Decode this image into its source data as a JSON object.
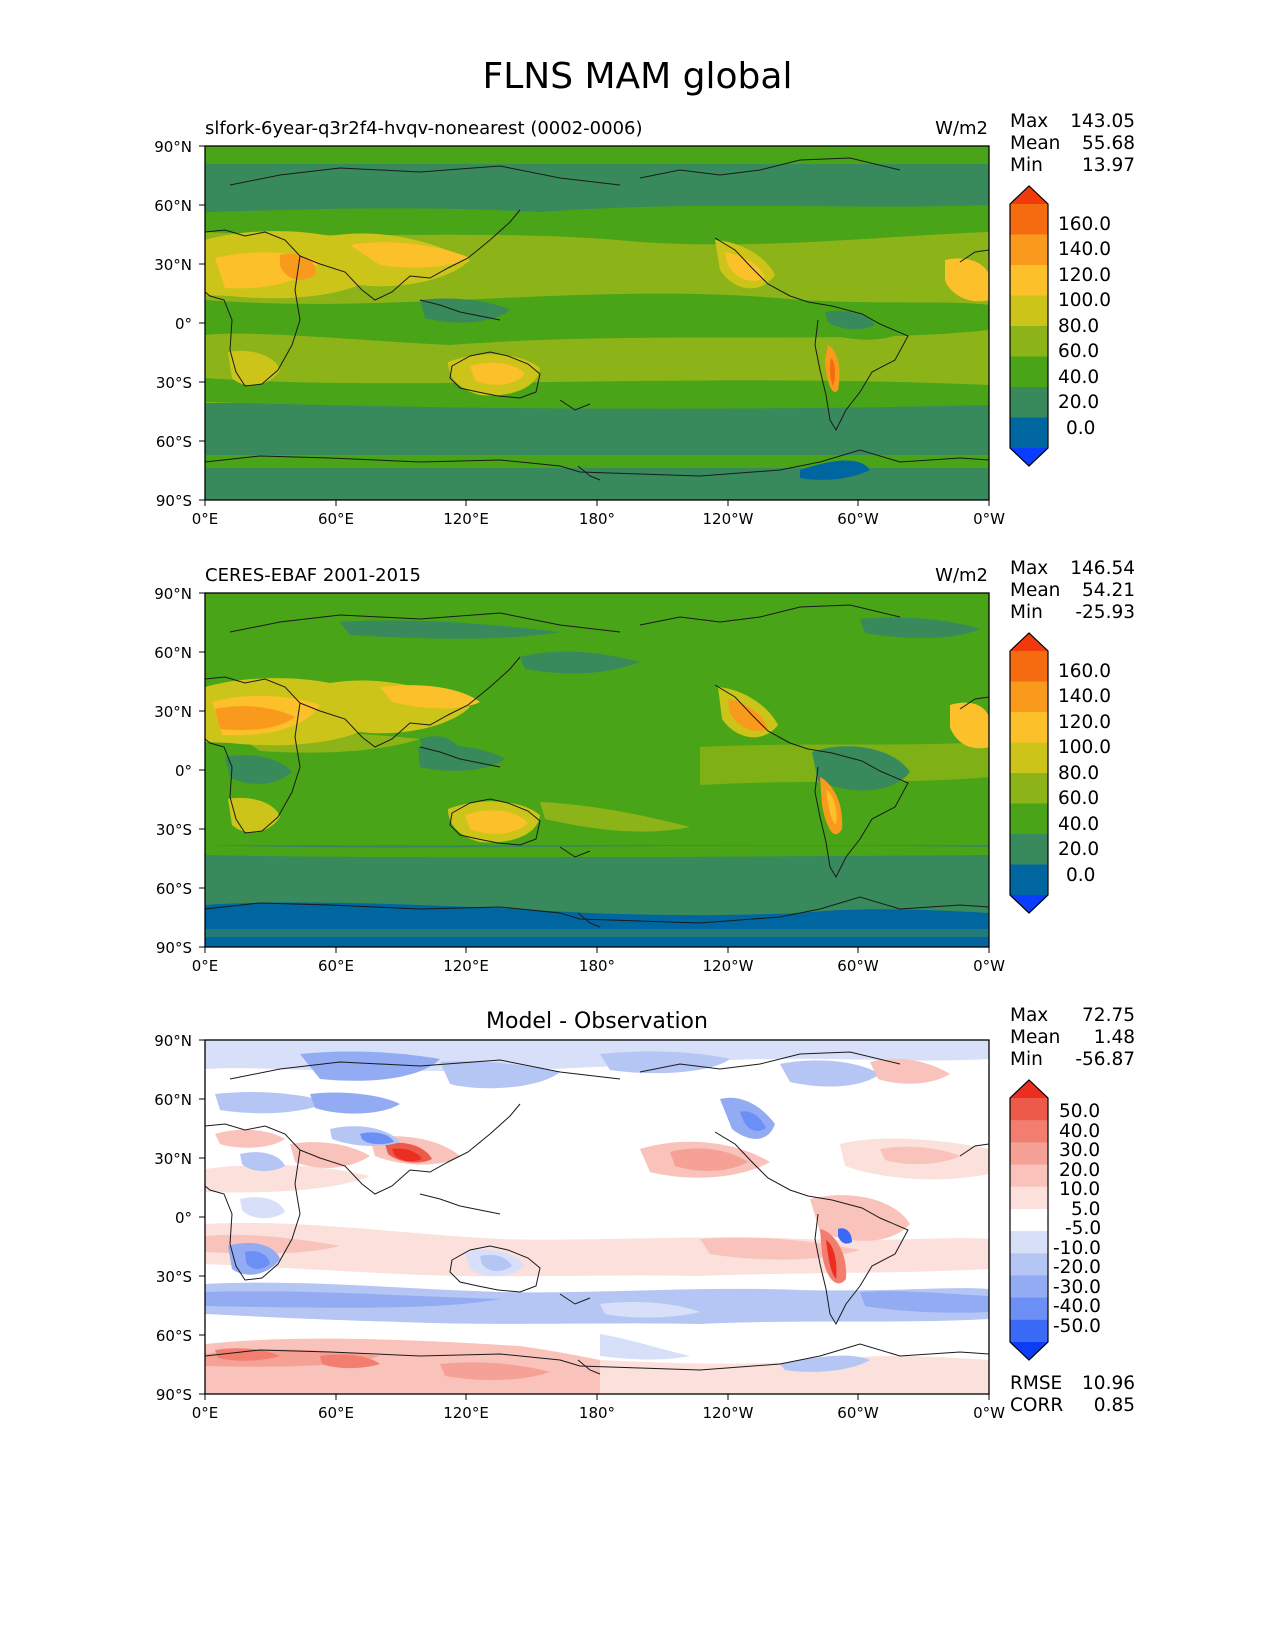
{
  "title": "FLNS MAM global",
  "axes": {
    "lat_ticks": [
      "90°N",
      "60°N",
      "30°N",
      "0°",
      "30°S",
      "60°S",
      "90°S"
    ],
    "lon_ticks": [
      "0°E",
      "60°E",
      "120°E",
      "180°",
      "120°W",
      "60°W",
      "0°W"
    ]
  },
  "colors": {
    "abs_levels": [
      "#0a3dff",
      "#0066a0",
      "#38895c",
      "#4aa418",
      "#8cb418",
      "#cdc41a",
      "#fbc02a",
      "#f99a1c",
      "#f56b10",
      "#f23a0c"
    ],
    "diff_levels": [
      "#0b3df7",
      "#3b6af7",
      "#6c8ff5",
      "#93abf3",
      "#b5c6f4",
      "#d7e0f8",
      "#ffffff",
      "#fbe0dc",
      "#f9c2bb",
      "#f6a196",
      "#f27e70",
      "#ee5a4a",
      "#ea2e20"
    ],
    "coastline": "#1a1a1a"
  },
  "panels": [
    {
      "id": "test",
      "left_title": "slfork-6year-q3r2f4-hvqv-nonearest (0002-0006)",
      "center_title": "",
      "units": "W/m2",
      "stats": [
        {
          "label": "Max",
          "value": "143.05"
        },
        {
          "label": "Mean",
          "value": "55.68"
        },
        {
          "label": "Min",
          "value": "13.97"
        }
      ],
      "colorbar_labels": [
        "160.0",
        "140.0",
        "120.0",
        "100.0",
        "80.0",
        "60.0",
        "40.0",
        "20.0",
        "0.0"
      ],
      "extra": []
    },
    {
      "id": "reference",
      "left_title": "CERES-EBAF 2001-2015",
      "center_title": "",
      "units": "W/m2",
      "stats": [
        {
          "label": "Max",
          "value": "146.54"
        },
        {
          "label": "Mean",
          "value": "54.21"
        },
        {
          "label": "Min",
          "value": "-25.93"
        }
      ],
      "colorbar_labels": [
        "160.0",
        "140.0",
        "120.0",
        "100.0",
        "80.0",
        "60.0",
        "40.0",
        "20.0",
        "0.0"
      ],
      "extra": []
    },
    {
      "id": "difference",
      "left_title": "",
      "center_title": "Model - Observation",
      "units": "",
      "stats": [
        {
          "label": "Max",
          "value": "72.75"
        },
        {
          "label": "Mean",
          "value": "1.48"
        },
        {
          "label": "Min",
          "value": "-56.87"
        }
      ],
      "colorbar_labels": [
        "50.0",
        "40.0",
        "30.0",
        "20.0",
        "10.0",
        "5.0",
        "-5.0",
        "-10.0",
        "-20.0",
        "-30.0",
        "-40.0",
        "-50.0"
      ],
      "extra": [
        {
          "label": "RMSE",
          "value": "10.96"
        },
        {
          "label": "CORR",
          "value": "0.85"
        }
      ]
    }
  ]
}
